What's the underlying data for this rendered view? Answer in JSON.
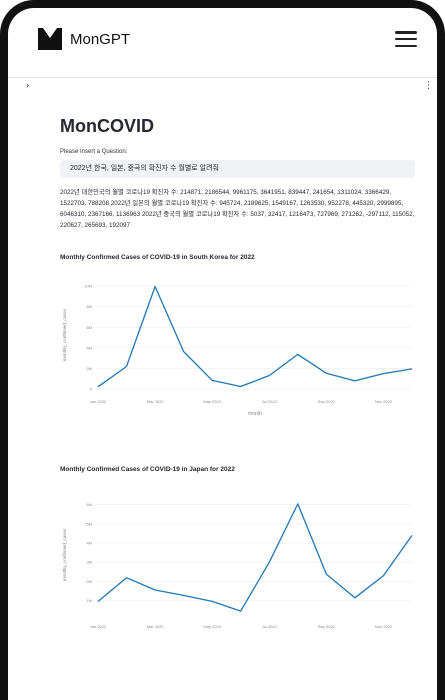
{
  "header": {
    "brand": "MonGPT",
    "logo_icon": "monGPT-logo-icon",
    "menu_icon": "hamburger-menu-icon"
  },
  "sidebar_toggle": "›",
  "more_menu": "⋮",
  "main": {
    "title": "MonCOVID",
    "input_label": "Please Insert a Question:",
    "input_value": "2022년 한국, 일본, 중국의 확진자 수 월별로 알려줘",
    "answer": "2022년 대한민국의 월별 코로나19 확진자 수: 214871, 2186544, 9961175, 3641951, 839447, 241654, 1311024, 3366429, 1522703, 788208 2022년 일본의 월별 코로나19 확진자 수: 945724, 2189625, 1549167, 1263530, 952278, 445320, 2999895, 6046310, 2367166, 1136963 2022년 중국의 월별 코로나19 확진자 수: 5037, 32417, 1216473, 727969, 271262, -297112, 115052, 220627, 265693, 192097"
  },
  "chart_data": [
    {
      "type": "line",
      "title": "Monthly Confirmed Cases of COVID-19 in South Korea for 2022",
      "xlabel": "month",
      "ylabel": "monthly_confirmed_cases",
      "x_tick_labels": [
        "Jan 2022",
        "Mar 2022",
        "May 2022",
        "Jul 2022",
        "Sep 2022",
        "Nov 2022"
      ],
      "y_tick_labels": [
        "0",
        "2M",
        "4M",
        "6M",
        "8M",
        "10M"
      ],
      "y_ticks": [
        0,
        2000000,
        4000000,
        6000000,
        8000000,
        10000000
      ],
      "ylim": [
        0,
        10500000
      ],
      "color": "#1f77b4",
      "values": [
        214871,
        2186544,
        9961175,
        3641951,
        839447,
        241654,
        1311024,
        3366429,
        1522703,
        788208,
        1500000,
        1950000
      ]
    },
    {
      "type": "line",
      "title": "Monthly Confirmed Cases of COVID-19 in Japan for 2022",
      "xlabel": "",
      "ylabel": "monthly_confirmed_cases",
      "x_tick_labels": [
        "Jan 2022",
        "Mar 2022",
        "May 2022",
        "Jul 2022",
        "Sep 2022",
        "Nov 2022"
      ],
      "y_tick_labels": [
        "1M",
        "2M",
        "3M",
        "4M",
        "5M",
        "6M"
      ],
      "y_ticks": [
        1000000,
        2000000,
        3000000,
        4000000,
        5000000,
        6000000
      ],
      "ylim": [
        450000,
        6300000
      ],
      "color": "#1f77b4",
      "values": [
        945724,
        2189625,
        1549167,
        1263530,
        952278,
        445320,
        2999895,
        6046310,
        2367166,
        1136963,
        2300000,
        4400000
      ]
    }
  ]
}
